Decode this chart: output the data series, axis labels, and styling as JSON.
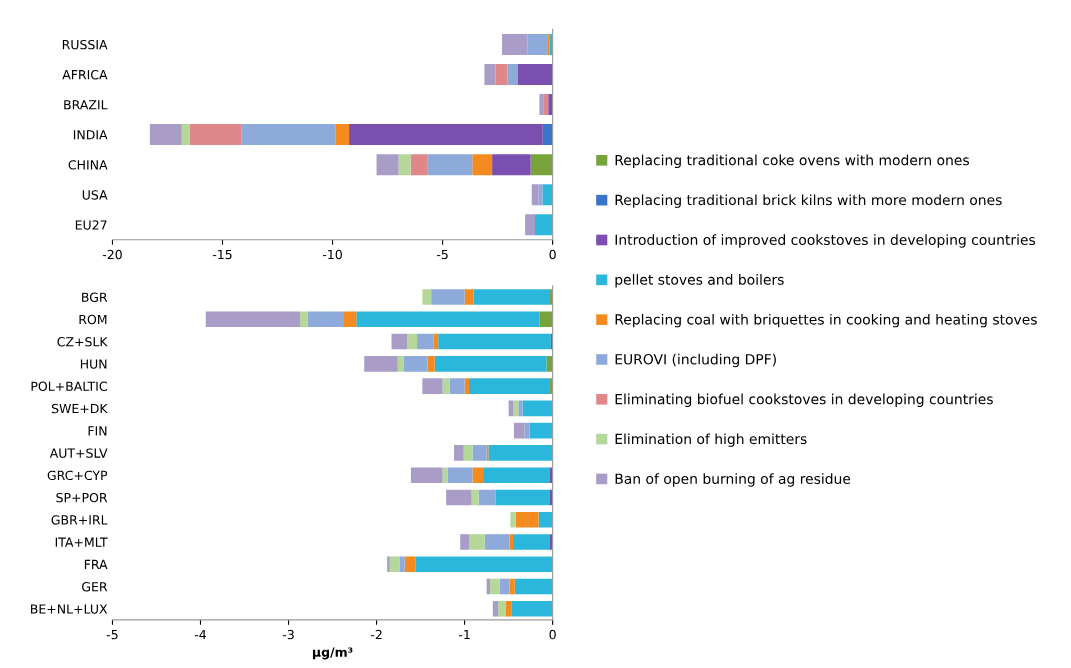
{
  "chart_data": [
    {
      "type": "bar",
      "orientation": "horizontal",
      "stacked": true,
      "legend": "right",
      "grid": false,
      "categories": [
        "RUSSIA",
        "AFRICA",
        "BRAZIL",
        "INDIA",
        "CHINA",
        "USA",
        "EU27"
      ],
      "xlim": [
        -20,
        0
      ],
      "xticks": [
        -20,
        -15,
        -10,
        -5,
        0
      ],
      "series": [
        {
          "name": "Replacing traditional coke ovens with modern ones",
          "color": "#77a33a",
          "values": [
            null,
            null,
            null,
            null,
            -1.0,
            null,
            null
          ]
        },
        {
          "name": "Replacing traditional brick kilns with more modern ones",
          "color": "#3a74c9",
          "values": [
            null,
            null,
            null,
            -0.45,
            null,
            null,
            null
          ]
        },
        {
          "name": "Introduction of improved cookstoves in developing countries",
          "color": "#7a4fb0",
          "values": [
            null,
            -1.6,
            -0.2,
            -8.8,
            -1.75,
            null,
            null
          ]
        },
        {
          "name": "pellet stoves and boilers",
          "color": "#2bb7dc",
          "values": [
            -0.15,
            null,
            null,
            null,
            null,
            -0.45,
            -0.8
          ]
        },
        {
          "name": "Replacing coal with briquettes in cooking and heating stoves",
          "color": "#f58b1f",
          "values": [
            -0.1,
            null,
            null,
            -0.6,
            -0.9,
            null,
            null
          ]
        },
        {
          "name": "EUROVI (including DPF)",
          "color": "#8eaadb",
          "values": [
            -0.9,
            -0.45,
            null,
            -4.3,
            -2.05,
            -0.2,
            null
          ]
        },
        {
          "name": "Eliminating biofuel cookstoves in developing countries",
          "color": "#e0878a",
          "values": [
            null,
            -0.55,
            -0.2,
            -2.35,
            -0.75,
            null,
            null
          ]
        },
        {
          "name": "Elimination of high emitters",
          "color": "#b5d89a",
          "values": [
            null,
            null,
            null,
            -0.35,
            -0.55,
            null,
            null
          ]
        },
        {
          "name": "Ban of open burning of ag residue",
          "color": "#a99dc8",
          "values": [
            -1.15,
            -0.5,
            -0.2,
            -1.45,
            -1.0,
            -0.3,
            -0.45
          ]
        }
      ]
    },
    {
      "type": "bar",
      "orientation": "horizontal",
      "stacked": true,
      "grid": false,
      "xlabel": "µg/m³",
      "categories": [
        "BGR",
        "ROM",
        "CZ+SLK",
        "HUN",
        "POL+BALTIC",
        "SWE+DK",
        "FIN",
        "AUT+SLV",
        "GRC+CYP",
        "SP+POR",
        "GBR+IRL",
        "ITA+MLT",
        "FRA",
        "GER",
        "BE+NL+LUX"
      ],
      "xlim": [
        -5,
        0
      ],
      "xticks": [
        -5,
        -4,
        -3,
        -2,
        -1,
        0
      ],
      "series": [
        {
          "color": "#77a33a",
          "values": [
            -0.03,
            -0.15,
            null,
            -0.07,
            -0.04,
            null,
            null,
            null,
            null,
            null,
            null,
            null,
            null,
            null,
            null
          ]
        },
        {
          "color": "#7a4fb0",
          "values": [
            null,
            null,
            -0.02,
            null,
            null,
            null,
            null,
            null,
            -0.03,
            -0.03,
            null,
            -0.03,
            null,
            null,
            null
          ]
        },
        {
          "color": "#2bb7dc",
          "values": [
            -0.87,
            -2.08,
            -1.28,
            -1.27,
            -0.91,
            -0.34,
            -0.26,
            -0.73,
            -0.76,
            -0.62,
            -0.16,
            -0.42,
            -1.56,
            -0.43,
            -0.47
          ]
        },
        {
          "color": "#f58b1f",
          "values": [
            -0.1,
            -0.15,
            -0.05,
            -0.08,
            -0.05,
            null,
            null,
            -0.02,
            -0.12,
            null,
            -0.26,
            -0.04,
            -0.12,
            -0.06,
            -0.06
          ]
        },
        {
          "color": "#8eaadb",
          "values": [
            -0.38,
            -0.4,
            -0.19,
            -0.27,
            -0.17,
            -0.05,
            -0.06,
            -0.16,
            -0.28,
            -0.19,
            null,
            -0.28,
            -0.06,
            -0.11,
            null
          ]
        },
        {
          "color": "#b5d89a",
          "values": [
            -0.1,
            -0.09,
            -0.11,
            -0.07,
            -0.08,
            -0.06,
            null,
            -0.1,
            -0.06,
            -0.08,
            -0.06,
            -0.18,
            -0.11,
            -0.11,
            -0.09
          ]
        },
        {
          "color": "#a99dc8",
          "values": [
            null,
            -1.07,
            -0.18,
            -0.38,
            -0.23,
            -0.05,
            -0.12,
            -0.11,
            -0.36,
            -0.29,
            null,
            -0.1,
            -0.03,
            -0.04,
            -0.06
          ]
        }
      ]
    }
  ]
}
